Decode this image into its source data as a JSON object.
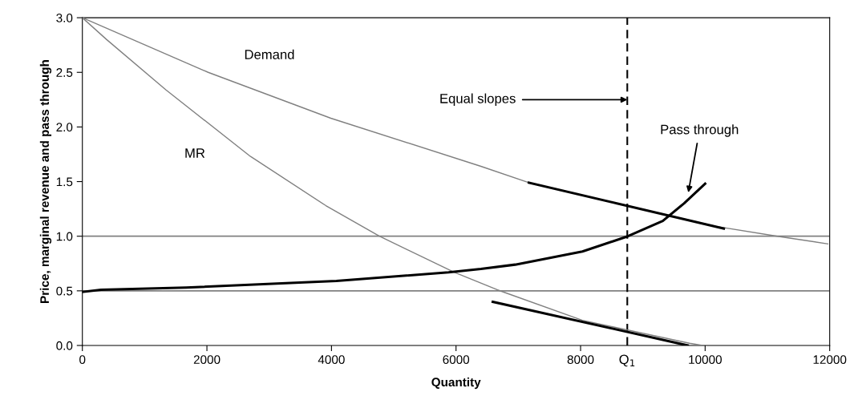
{
  "chart_data": {
    "type": "line",
    "xlabel": "Quantity",
    "ylabel": "Price, marginal revenue and pass through",
    "xlim": [
      0,
      12000
    ],
    "xticks": [
      0,
      2000,
      4000,
      6000,
      8000,
      10000,
      12000
    ],
    "ylim": [
      0,
      3
    ],
    "yticks": [
      {
        "value": 0,
        "label": "0.0"
      },
      {
        "value": 0.5,
        "label": "0.5"
      },
      {
        "value": 1,
        "label": "1.0"
      },
      {
        "value": 1.5,
        "label": "1.5"
      },
      {
        "value": 2,
        "label": "2.0"
      },
      {
        "value": 2.5,
        "label": "2.5"
      },
      {
        "value": 3,
        "label": "3.0"
      }
    ],
    "grid": false,
    "legend": false,
    "marker": "none",
    "line_style": "solid",
    "series": [
      {
        "name": "Demand",
        "color": "#808080",
        "x": [
          0,
          2020,
          3990,
          6400,
          7170,
          10170,
          11160,
          11970
        ],
        "values": [
          3.0,
          2.5,
          2.08,
          1.64,
          1.49,
          1.09,
          1.0,
          0.93
        ]
      },
      {
        "name": "MR",
        "color": "#808080",
        "x": [
          0,
          390,
          1340,
          2700,
          3910,
          4770,
          5970,
          6660,
          8030,
          9750,
          9970
        ],
        "values": [
          3.0,
          2.8,
          2.34,
          1.73,
          1.28,
          1.0,
          0.67,
          0.51,
          0.23,
          0.02,
          0.0
        ]
      },
      {
        "color": "#000000",
        "x": [
          0,
          300,
          1670,
          4080,
          5880,
          6400,
          6950,
          8030,
          8760,
          9320,
          9660,
          10000
        ],
        "values": [
          0.49,
          0.51,
          0.53,
          0.59,
          0.67,
          0.7,
          0.74,
          0.86,
          1.0,
          1.14,
          1.3,
          1.48
        ]
      },
      {
        "color": "#000000",
        "x": [
          7170,
          10300
        ],
        "values": [
          1.49,
          1.07
        ]
      },
      {
        "color": "#000000",
        "x": [
          6590,
          9720
        ],
        "values": [
          0.4,
          0.0
        ]
      }
    ],
    "ref_lines": [
      {
        "axis": "y",
        "value": 1.0,
        "color": "#808080",
        "line_style": "solid"
      },
      {
        "axis": "y",
        "value": 0.5,
        "color": "#808080",
        "line_style": "solid"
      },
      {
        "axis": "x",
        "value": 8750,
        "label": "Q$_{1}$",
        "color": "#000000",
        "line_style": "dashed"
      }
    ],
    "annotations": [
      {
        "text": "Equal slopes",
        "x": 8750,
        "y": 2.25
      },
      {
        "text": "Pass through",
        "x": 9730,
        "y": 1.4
      }
    ]
  }
}
